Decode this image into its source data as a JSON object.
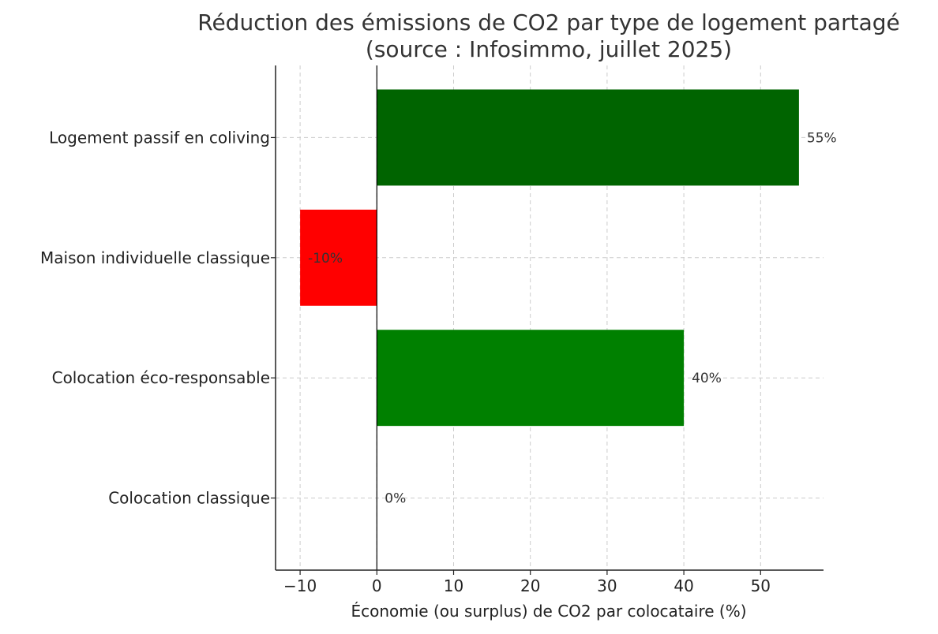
{
  "chart_data": {
    "type": "bar",
    "orientation": "horizontal",
    "title_line1": "Réduction des émissions de CO2 par type de logement partagé",
    "title_line2": "(source : Infosimmo, juillet 2025)",
    "xlabel": "Économie (ou surplus) de CO2 par colocataire (%)",
    "ylabel": "",
    "xlim": [
      -13.2,
      58.2
    ],
    "xticks": [
      -10,
      0,
      10,
      20,
      30,
      40,
      50
    ],
    "xtick_labels": [
      "−10",
      "0",
      "10",
      "20",
      "30",
      "40",
      "50"
    ],
    "grid": true,
    "categories": [
      "Colocation classique",
      "Colocation éco-responsable",
      "Maison individuelle classique",
      "Logement passif en coliving"
    ],
    "values": [
      0,
      40,
      -10,
      55
    ],
    "data_labels": [
      "0%",
      "40%",
      "-10%",
      "55%"
    ],
    "colors": [
      "#cccccc",
      "#008000",
      "#ff0000",
      "#006400"
    ],
    "zero_line_color": "#000000"
  }
}
